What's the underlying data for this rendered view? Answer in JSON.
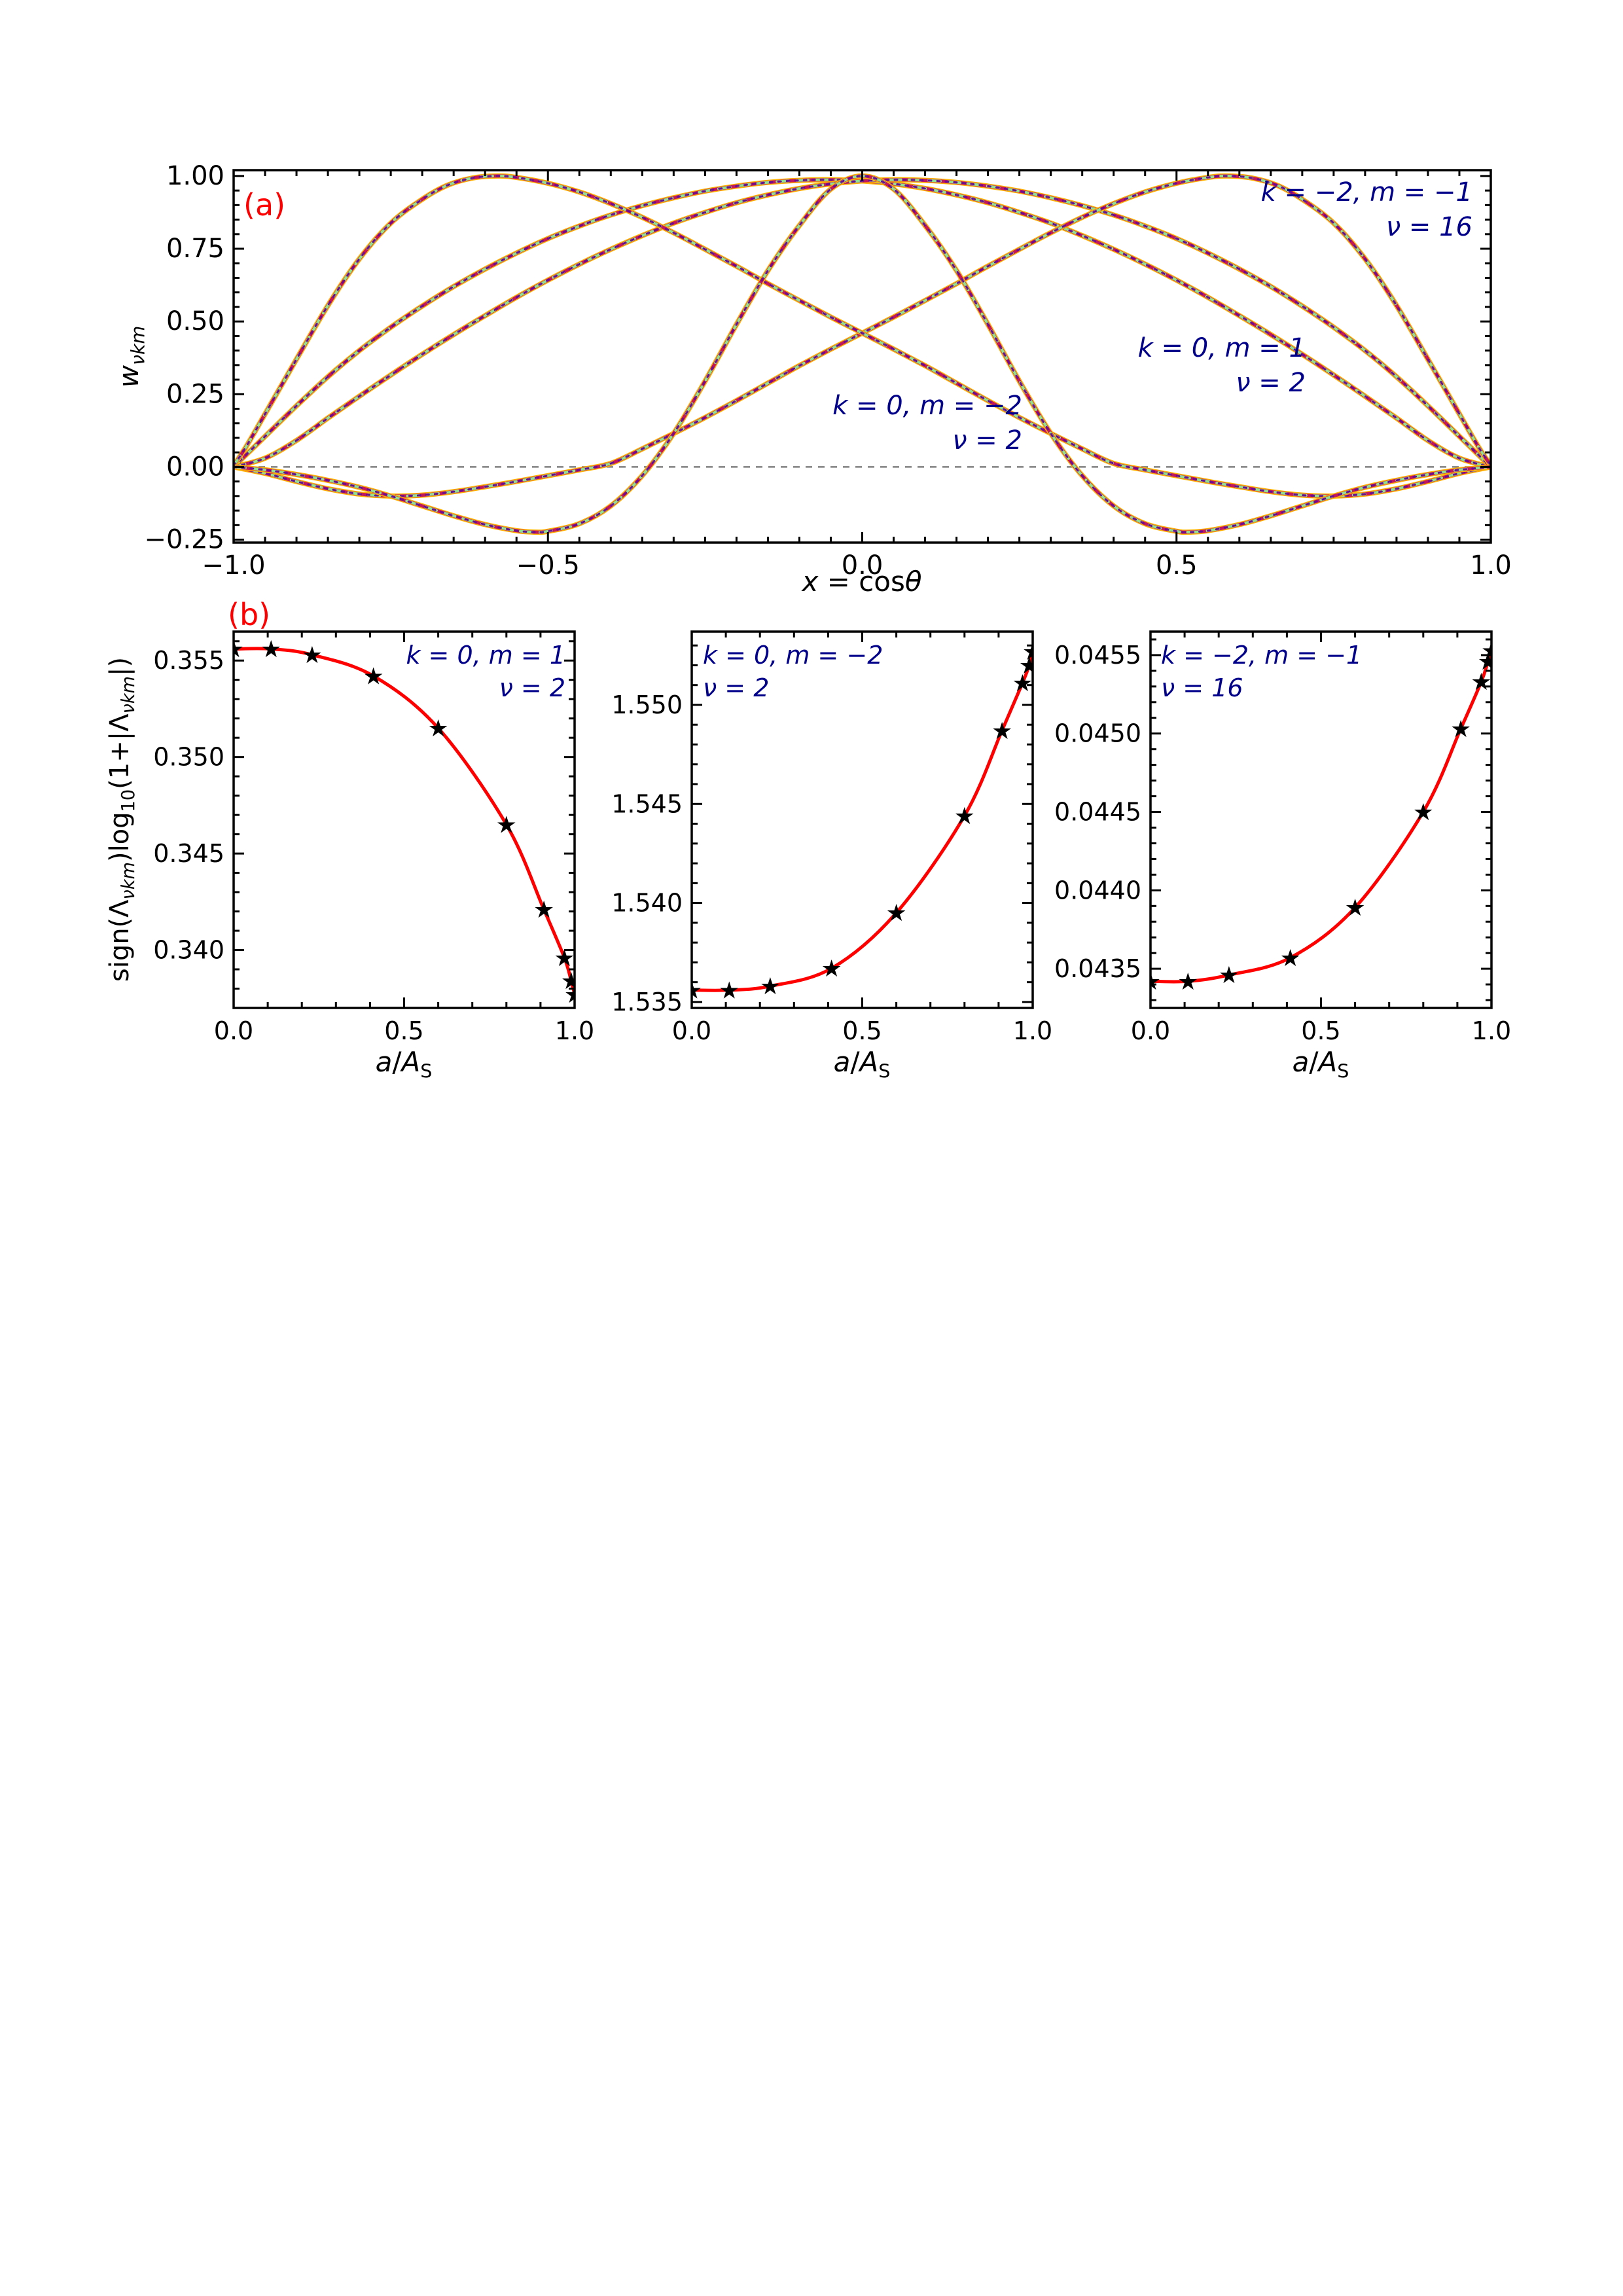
{
  "panel_labels": {
    "a": "(a)",
    "b": "(b)"
  },
  "labels": {
    "xa": {
      "p1": "x",
      "p2": " = cos",
      "p3": "θ"
    },
    "ya": {
      "base": "w",
      "sub": "νkm"
    },
    "xb": {
      "p1": "a",
      "p2": "/",
      "p3": "A",
      "s": "S"
    },
    "yb": {
      "p1": "sign(Λ",
      "s1": "νkm",
      "p2": ")log",
      "s2": "10",
      "p3": "(1+|Λ",
      "s3": "νkm",
      "p4": "|)"
    }
  },
  "colors": {
    "annotation": "#00008B",
    "panel_label": "#ff0000",
    "fit_curve": "#ff0000",
    "marker": "#000000",
    "zero_line": "#808080",
    "axis": "#000000",
    "bundle": [
      "#FFB300",
      "#C2185B",
      "#8FE38F",
      "#6A0D91"
    ]
  },
  "chart_data": [
    {
      "type": "line",
      "id": "panel-a",
      "xlim": [
        -1,
        1
      ],
      "ylim": [
        -0.26,
        1.02
      ],
      "xticks": {
        "values": [
          -1,
          -0.5,
          0,
          0.5,
          1
        ],
        "labels": [
          "−1.0",
          "−0.5",
          "0.0",
          "0.5",
          "1.0"
        ],
        "minor_step": 0.05
      },
      "yticks": {
        "values": [
          -0.25,
          0,
          0.25,
          0.5,
          0.75,
          1
        ],
        "labels": [
          "−0.25",
          "0.00",
          "0.25",
          "0.50",
          "0.75",
          "1.00"
        ],
        "minor_step": 0.05
      },
      "zero_line": 0,
      "grid": false,
      "legend": "none",
      "annotations": [
        {
          "lines": [
            "k = −2, m = −1",
            "ν = 16"
          ],
          "align": "right"
        },
        {
          "lines": [
            "k = 0, m = 1",
            "ν = 2"
          ],
          "align": "right"
        },
        {
          "lines": [
            "k = 0, m = −2",
            "ν = 2"
          ],
          "align": "right"
        }
      ],
      "series": [
        {
          "name": "k=0, m=1, nu=2 broad bell",
          "points": [
            [
              -1,
              0
            ],
            [
              -0.95,
              0.105
            ],
            [
              -0.9,
              0.21
            ],
            [
              -0.85,
              0.31
            ],
            [
              -0.8,
              0.4
            ],
            [
              -0.75,
              0.48
            ],
            [
              -0.7,
              0.553
            ],
            [
              -0.65,
              0.62
            ],
            [
              -0.6,
              0.68
            ],
            [
              -0.55,
              0.735
            ],
            [
              -0.5,
              0.785
            ],
            [
              -0.45,
              0.828
            ],
            [
              -0.4,
              0.866
            ],
            [
              -0.35,
              0.898
            ],
            [
              -0.3,
              0.925
            ],
            [
              -0.25,
              0.948
            ],
            [
              -0.2,
              0.965
            ],
            [
              -0.15,
              0.978
            ],
            [
              -0.1,
              0.985
            ],
            [
              -0.05,
              0.987
            ],
            [
              0,
              0.983
            ],
            [
              0.05,
              0.973
            ],
            [
              0.1,
              0.957
            ],
            [
              0.15,
              0.935
            ],
            [
              0.2,
              0.908
            ],
            [
              0.25,
              0.875
            ],
            [
              0.3,
              0.838
            ],
            [
              0.35,
              0.795
            ],
            [
              0.4,
              0.748
            ],
            [
              0.45,
              0.697
            ],
            [
              0.5,
              0.642
            ],
            [
              0.55,
              0.583
            ],
            [
              0.6,
              0.52
            ],
            [
              0.65,
              0.455
            ],
            [
              0.7,
              0.387
            ],
            [
              0.75,
              0.316
            ],
            [
              0.8,
              0.243
            ],
            [
              0.85,
              0.168
            ],
            [
              0.9,
              0.091
            ],
            [
              0.95,
              0.03
            ],
            [
              1,
              0
            ]
          ]
        },
        {
          "name": "k=0, m=-1, nu=2 broad bell (mirror)",
          "mirror_of": 0
        },
        {
          "name": "k=-2, m=-1, nu=16 bell",
          "points": [
            [
              -1,
              0
            ],
            [
              -0.95,
              -0.022
            ],
            [
              -0.9,
              -0.05
            ],
            [
              -0.85,
              -0.075
            ],
            [
              -0.8,
              -0.093
            ],
            [
              -0.75,
              -0.1
            ],
            [
              -0.7,
              -0.097
            ],
            [
              -0.65,
              -0.085
            ],
            [
              -0.6,
              -0.068
            ],
            [
              -0.55,
              -0.05
            ],
            [
              -0.5,
              -0.03
            ],
            [
              -0.45,
              -0.01
            ],
            [
              -0.4,
              0.012
            ],
            [
              -0.35,
              0.062
            ],
            [
              -0.3,
              0.115
            ],
            [
              -0.25,
              0.17
            ],
            [
              -0.2,
              0.228
            ],
            [
              -0.15,
              0.288
            ],
            [
              -0.1,
              0.348
            ],
            [
              -0.05,
              0.405
            ],
            [
              0,
              0.46
            ],
            [
              0.05,
              0.515
            ],
            [
              0.1,
              0.572
            ],
            [
              0.15,
              0.63
            ],
            [
              0.2,
              0.69
            ],
            [
              0.25,
              0.748
            ],
            [
              0.3,
              0.805
            ],
            [
              0.35,
              0.858
            ],
            [
              0.4,
              0.905
            ],
            [
              0.45,
              0.945
            ],
            [
              0.5,
              0.975
            ],
            [
              0.55,
              0.995
            ],
            [
              0.58,
              1.0
            ],
            [
              0.62,
              0.993
            ],
            [
              0.66,
              0.968
            ],
            [
              0.7,
              0.92
            ],
            [
              0.75,
              0.838
            ],
            [
              0.8,
              0.715
            ],
            [
              0.85,
              0.555
            ],
            [
              0.9,
              0.37
            ],
            [
              0.95,
              0.182
            ],
            [
              0.98,
              0.07
            ],
            [
              1,
              0.005
            ]
          ]
        },
        {
          "name": "k=-2, m=1, nu=16 bell (mirror)",
          "mirror_of": 2
        },
        {
          "name": "k=0, m=-2, nu=2 central peak",
          "points": [
            [
              -1,
              0
            ],
            [
              -0.95,
              -0.01
            ],
            [
              -0.9,
              -0.026
            ],
            [
              -0.85,
              -0.046
            ],
            [
              -0.8,
              -0.07
            ],
            [
              -0.75,
              -0.1
            ],
            [
              -0.7,
              -0.134
            ],
            [
              -0.65,
              -0.168
            ],
            [
              -0.6,
              -0.198
            ],
            [
              -0.55,
              -0.219
            ],
            [
              -0.52,
              -0.224
            ],
            [
              -0.5,
              -0.221
            ],
            [
              -0.45,
              -0.195
            ],
            [
              -0.4,
              -0.134
            ],
            [
              -0.35,
              -0.03
            ],
            [
              -0.3,
              0.115
            ],
            [
              -0.25,
              0.295
            ],
            [
              -0.2,
              0.49
            ],
            [
              -0.15,
              0.675
            ],
            [
              -0.1,
              0.83
            ],
            [
              -0.05,
              0.955
            ],
            [
              0,
              1
            ],
            [
              0.05,
              0.955
            ],
            [
              0.1,
              0.83
            ],
            [
              0.15,
              0.675
            ],
            [
              0.2,
              0.49
            ],
            [
              0.25,
              0.295
            ],
            [
              0.3,
              0.115
            ],
            [
              0.35,
              -0.03
            ],
            [
              0.4,
              -0.134
            ],
            [
              0.45,
              -0.195
            ],
            [
              0.5,
              -0.221
            ],
            [
              0.52,
              -0.224
            ],
            [
              0.55,
              -0.219
            ],
            [
              0.6,
              -0.198
            ],
            [
              0.65,
              -0.168
            ],
            [
              0.7,
              -0.134
            ],
            [
              0.75,
              -0.1
            ],
            [
              0.8,
              -0.07
            ],
            [
              0.85,
              -0.046
            ],
            [
              0.9,
              -0.026
            ],
            [
              0.95,
              -0.01
            ],
            [
              1,
              0
            ]
          ]
        }
      ]
    },
    {
      "type": "scatter-line",
      "id": "panel-b1",
      "annotation": {
        "lines": [
          "k = 0, m = 1",
          "ν = 2"
        ],
        "align": "right"
      },
      "xlim": [
        0,
        1
      ],
      "ylim": [
        0.337,
        0.3565
      ],
      "xticks": {
        "values": [
          0,
          0.5,
          1
        ],
        "labels": [
          "0.0",
          "0.5",
          "1.0"
        ],
        "minor_step": 0.1
      },
      "yticks": {
        "values": [
          0.34,
          0.345,
          0.35,
          0.355
        ],
        "labels": [
          "0.340",
          "0.345",
          "0.350",
          "0.355"
        ],
        "minor_step": 0.001
      },
      "x": [
        0,
        0.11,
        0.23,
        0.41,
        0.6,
        0.8,
        0.91,
        0.97,
        0.99,
        1.0
      ],
      "y": [
        0.3556,
        0.3556,
        0.3553,
        0.3542,
        0.3515,
        0.3465,
        0.3421,
        0.3396,
        0.3384,
        0.3377
      ]
    },
    {
      "type": "scatter-line",
      "id": "panel-b2",
      "annotation": {
        "lines": [
          "k = 0, m = −2",
          "ν = 2"
        ],
        "align": "left"
      },
      "xlim": [
        0,
        1
      ],
      "ylim": [
        1.5347,
        1.5537
      ],
      "xticks": {
        "values": [
          0,
          0.5,
          1
        ],
        "labels": [
          "0.0",
          "0.5",
          "1.0"
        ],
        "minor_step": 0.1
      },
      "yticks": {
        "values": [
          1.535,
          1.54,
          1.545,
          1.55
        ],
        "labels": [
          "1.535",
          "1.540",
          "1.545",
          "1.550"
        ],
        "minor_step": 0.001
      },
      "x": [
        0,
        0.11,
        0.23,
        0.41,
        0.6,
        0.8,
        0.91,
        0.97,
        0.99,
        1.0
      ],
      "y": [
        1.5356,
        1.5356,
        1.5358,
        1.5367,
        1.5395,
        1.5444,
        1.5487,
        1.5511,
        1.552,
        1.5527
      ]
    },
    {
      "type": "scatter-line",
      "id": "panel-b3",
      "annotation": {
        "lines": [
          "k = −2, m = −1",
          "ν = 16"
        ],
        "align": "left"
      },
      "xlim": [
        0,
        1
      ],
      "ylim": [
        0.04325,
        0.04565
      ],
      "xticks": {
        "values": [
          0,
          0.5,
          1
        ],
        "labels": [
          "0.0",
          "0.5",
          "1.0"
        ],
        "minor_step": 0.1
      },
      "yticks": {
        "values": [
          0.0435,
          0.044,
          0.0445,
          0.045,
          0.0455
        ],
        "labels": [
          "0.0435",
          "0.0440",
          "0.0445",
          "0.0450",
          "0.0455"
        ],
        "minor_step": 0.0001
      },
      "x": [
        0,
        0.11,
        0.23,
        0.41,
        0.6,
        0.8,
        0.91,
        0.97,
        0.99,
        1.0
      ],
      "y": [
        0.04342,
        0.04342,
        0.04346,
        0.04357,
        0.04389,
        0.0445,
        0.04503,
        0.04533,
        0.04546,
        0.04553
      ]
    }
  ]
}
